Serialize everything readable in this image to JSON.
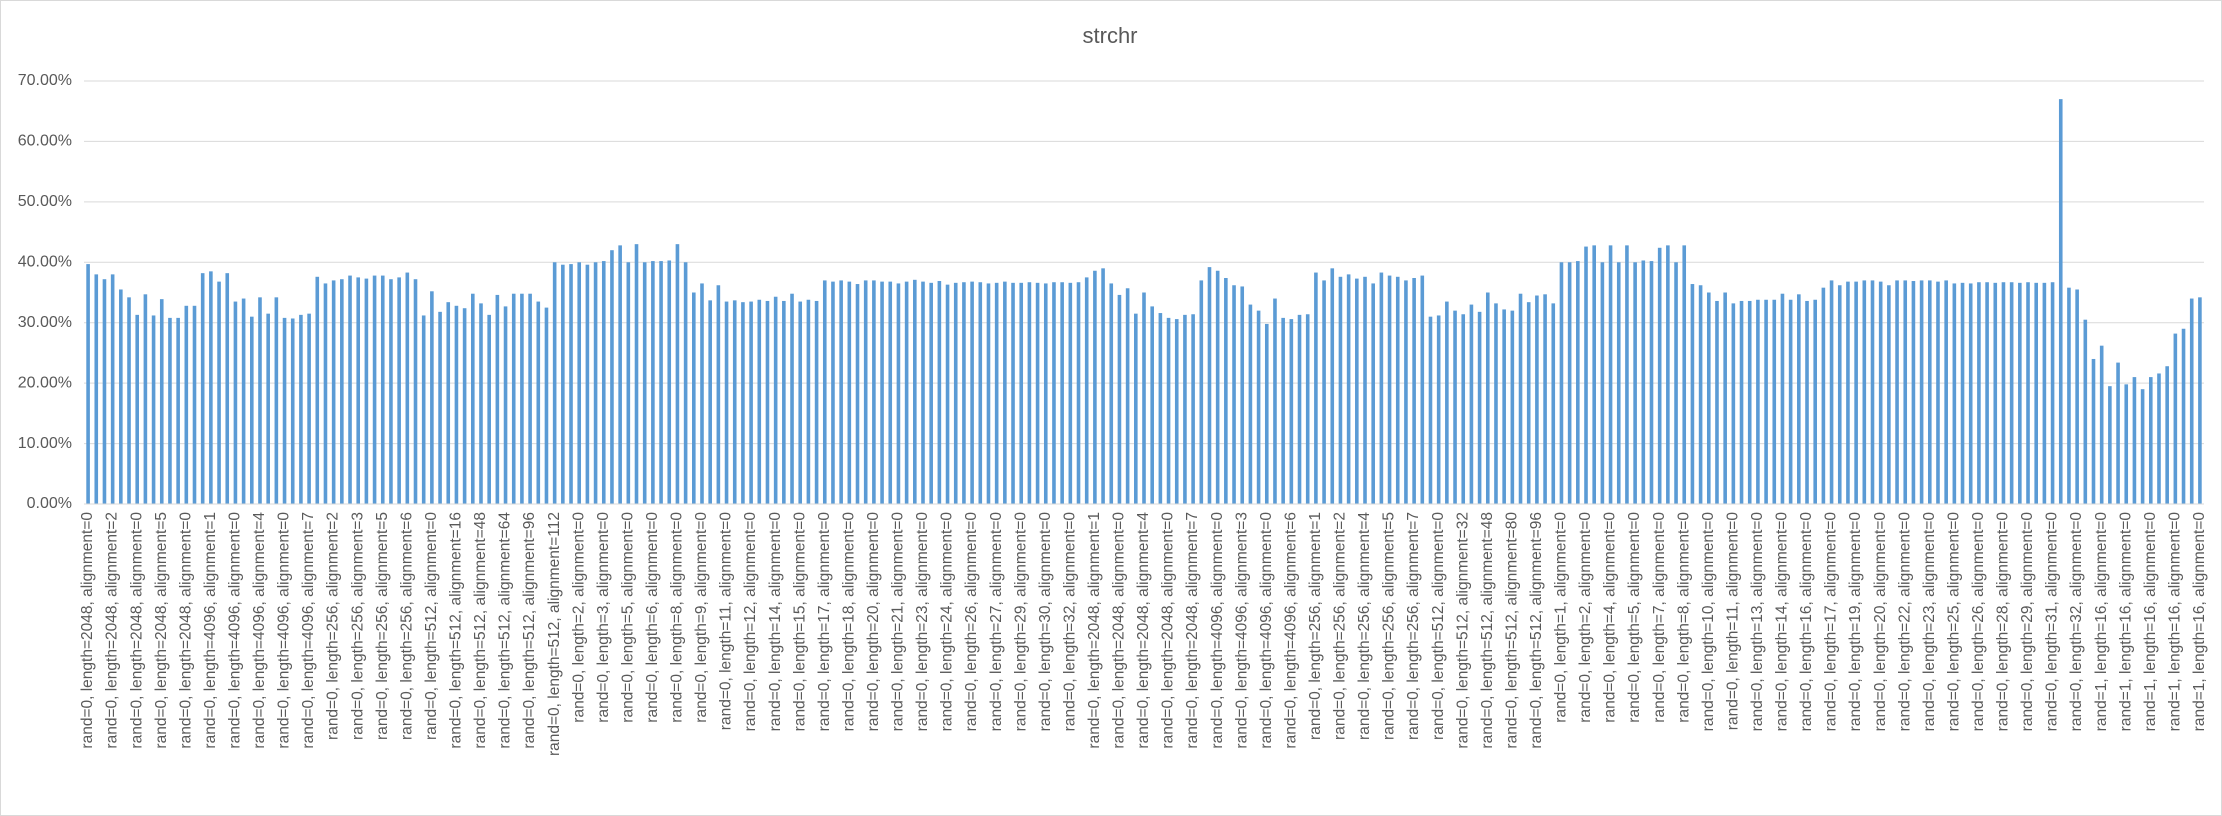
{
  "chart_data": {
    "type": "bar",
    "title": "strchr",
    "color": "#5b9bd5",
    "grid": true,
    "ylim": [
      0,
      70
    ],
    "yticks": [
      {
        "value": 0,
        "label": "0.00%"
      },
      {
        "value": 10,
        "label": "10.00%"
      },
      {
        "value": 20,
        "label": "20.00%"
      },
      {
        "value": 30,
        "label": "30.00%"
      },
      {
        "value": 40,
        "label": "40.00%"
      },
      {
        "value": 50,
        "label": "50.00%"
      },
      {
        "value": 60,
        "label": "60.00%"
      },
      {
        "value": 70,
        "label": "70.00%"
      }
    ],
    "categories": [
      "rand=0, length=2048, alignment=0",
      null,
      null,
      "rand=0, length=2048, alignment=2",
      null,
      null,
      "rand=0, length=2048, alignment=0",
      null,
      null,
      "rand=0, length=2048, alignment=5",
      null,
      null,
      "rand=0, length=2048, alignment=0",
      null,
      null,
      "rand=0, length=4096, alignment=1",
      null,
      null,
      "rand=0, length=4096, alignment=0",
      null,
      null,
      "rand=0, length=4096, alignment=4",
      null,
      null,
      "rand=0, length=4096, alignment=0",
      null,
      null,
      "rand=0, length=4096, alignment=7",
      null,
      null,
      "rand=0, length=256, alignment=2",
      null,
      null,
      "rand=0, length=256, alignment=3",
      null,
      null,
      "rand=0, length=256, alignment=5",
      null,
      null,
      "rand=0, length=256, alignment=6",
      null,
      null,
      "rand=0, length=512, alignment=0",
      null,
      null,
      "rand=0, length=512, alignment=16",
      null,
      null,
      "rand=0, length=512, alignment=48",
      null,
      null,
      "rand=0, length=512, alignment=64",
      null,
      null,
      "rand=0, length=512, alignment=96",
      null,
      null,
      "rand=0, length=512, alignment=112",
      null,
      null,
      "rand=0, length=2, alignment=0",
      null,
      null,
      "rand=0, length=3, alignment=0",
      null,
      null,
      "rand=0, length=5, alignment=0",
      null,
      null,
      "rand=0, length=6, alignment=0",
      null,
      null,
      "rand=0, length=8, alignment=0",
      null,
      null,
      "rand=0, length=9, alignment=0",
      null,
      null,
      "rand=0, length=11, alignment=0",
      null,
      null,
      "rand=0, length=12, alignment=0",
      null,
      null,
      "rand=0, length=14, alignment=0",
      null,
      null,
      "rand=0, length=15, alignment=0",
      null,
      null,
      "rand=0, length=17, alignment=0",
      null,
      null,
      "rand=0, length=18, alignment=0",
      null,
      null,
      "rand=0, length=20, alignment=0",
      null,
      null,
      "rand=0, length=21, alignment=0",
      null,
      null,
      "rand=0, length=23, alignment=0",
      null,
      null,
      "rand=0, length=24, alignment=0",
      null,
      null,
      "rand=0, length=26, alignment=0",
      null,
      null,
      "rand=0, length=27, alignment=0",
      null,
      null,
      "rand=0, length=29, alignment=0",
      null,
      null,
      "rand=0, length=30, alignment=0",
      null,
      null,
      "rand=0, length=32, alignment=0",
      null,
      null,
      "rand=0, length=2048, alignment=1",
      null,
      null,
      "rand=0, length=2048, alignment=0",
      null,
      null,
      "rand=0, length=2048, alignment=4",
      null,
      null,
      "rand=0, length=2048, alignment=0",
      null,
      null,
      "rand=0, length=2048, alignment=7",
      null,
      null,
      "rand=0, length=4096, alignment=0",
      null,
      null,
      "rand=0, length=4096, alignment=3",
      null,
      null,
      "rand=0, length=4096, alignment=0",
      null,
      null,
      "rand=0, length=4096, alignment=6",
      null,
      null,
      "rand=0, length=256, alignment=1",
      null,
      null,
      "rand=0, length=256, alignment=2",
      null,
      null,
      "rand=0, length=256, alignment=4",
      null,
      null,
      "rand=0, length=256, alignment=5",
      null,
      null,
      "rand=0, length=256, alignment=7",
      null,
      null,
      "rand=0, length=512, alignment=0",
      null,
      null,
      "rand=0, length=512, alignment=32",
      null,
      null,
      "rand=0, length=512, alignment=48",
      null,
      null,
      "rand=0, length=512, alignment=80",
      null,
      null,
      "rand=0, length=512, alignment=96",
      null,
      null,
      "rand=0, length=1, alignment=0",
      null,
      null,
      "rand=0, length=2, alignment=0",
      null,
      null,
      "rand=0, length=4, alignment=0",
      null,
      null,
      "rand=0, length=5, alignment=0",
      null,
      null,
      "rand=0, length=7, alignment=0",
      null,
      null,
      "rand=0, length=8, alignment=0",
      null,
      null,
      "rand=0, length=10, alignment=0",
      null,
      null,
      "rand=0, length=11, alignment=0",
      null,
      null,
      "rand=0, length=13, alignment=0",
      null,
      null,
      "rand=0, length=14, alignment=0",
      null,
      null,
      "rand=0, length=16, alignment=0",
      null,
      null,
      "rand=0, length=17, alignment=0",
      null,
      null,
      "rand=0, length=19, alignment=0",
      null,
      null,
      "rand=0, length=20, alignment=0",
      null,
      null,
      "rand=0, length=22, alignment=0",
      null,
      null,
      "rand=0, length=23, alignment=0",
      null,
      null,
      "rand=0, length=25, alignment=0",
      null,
      null,
      "rand=0, length=26, alignment=0",
      null,
      null,
      "rand=0, length=28, alignment=0",
      null,
      null,
      "rand=0, length=29, alignment=0",
      null,
      null,
      "rand=0, length=31, alignment=0",
      null,
      null,
      "rand=0, length=32, alignment=0",
      null,
      null,
      "rand=1, length=16, alignment=0",
      null,
      null,
      "rand=1, length=16, alignment=0",
      null,
      null,
      "rand=1, length=16, alignment=0",
      null,
      null,
      "rand=1, length=16, alignment=0",
      null,
      null,
      "rand=1, length=16, alignment=0"
    ],
    "values": [
      39.7,
      38,
      37.2,
      38,
      35.5,
      34.2,
      31.3,
      34.7,
      31.2,
      33.9,
      30.8,
      30.8,
      32.8,
      32.8,
      38.2,
      38.5,
      36.8,
      38.2,
      33.5,
      34,
      31,
      34.2,
      31.5,
      34.2,
      30.8,
      30.7,
      31.3,
      31.5,
      37.6,
      36.5,
      37,
      37.2,
      37.8,
      37.5,
      37.3,
      37.8,
      37.8,
      37.2,
      37.5,
      38.3,
      37.2,
      31.2,
      35.2,
      31.8,
      33.4,
      32.8,
      32.4,
      34.8,
      33.2,
      31.3,
      34.6,
      32.7,
      34.8,
      34.8,
      34.8,
      33.5,
      32.5,
      40,
      39.6,
      39.7,
      40,
      39.6,
      40,
      40.2,
      42,
      42.8,
      40,
      43,
      40,
      40.2,
      40.2,
      40.3,
      43,
      40,
      35,
      36.5,
      33.7,
      36.2,
      33.5,
      33.7,
      33.4,
      33.5,
      33.8,
      33.6,
      34.3,
      33.6,
      34.8,
      33.5,
      33.8,
      33.6,
      37,
      36.8,
      37,
      36.8,
      36.4,
      37,
      37,
      36.8,
      36.8,
      36.5,
      36.8,
      37.1,
      36.8,
      36.6,
      36.9,
      36.3,
      36.6,
      36.7,
      36.8,
      36.7,
      36.5,
      36.6,
      36.8,
      36.6,
      36.6,
      36.7,
      36.6,
      36.5,
      36.7,
      36.7,
      36.6,
      36.7,
      37.5,
      38.6,
      39,
      36.5,
      34.6,
      35.7,
      31.5,
      35,
      32.7,
      31.6,
      30.8,
      30.6,
      31.3,
      31.4,
      37,
      39.2,
      38.6,
      37.4,
      36.2,
      36,
      33,
      32,
      29.8,
      34,
      30.8,
      30.6,
      31.3,
      31.4,
      38.3,
      37,
      39,
      37.6,
      38,
      37.3,
      37.6,
      36.5,
      38.3,
      37.8,
      37.6,
      37,
      37.4,
      37.8,
      31,
      31.2,
      33.5,
      32,
      31.4,
      33,
      31.8,
      35,
      33.2,
      32.2,
      32,
      34.8,
      33.4,
      34.5,
      34.7,
      33.2,
      40,
      40,
      40.2,
      42.6,
      42.8,
      40,
      42.8,
      40,
      42.8,
      40,
      40.3,
      40.2,
      42.4,
      42.8,
      40,
      42.8,
      36.4,
      36.2,
      35,
      33.6,
      35,
      33.2,
      33.6,
      33.6,
      33.8,
      33.8,
      33.8,
      34.8,
      33.8,
      34.7,
      33.6,
      33.8,
      35.8,
      37,
      36.2,
      36.8,
      36.8,
      37,
      37,
      36.8,
      36.2,
      37,
      37,
      36.9,
      37,
      37,
      36.8,
      37,
      36.5,
      36.6,
      36.5,
      36.7,
      36.7,
      36.6,
      36.7,
      36.7,
      36.6,
      36.7,
      36.6,
      36.6,
      36.7,
      67,
      35.8,
      35.5,
      30.5,
      24,
      26.2,
      19.5,
      23.4,
      19.8,
      21,
      19,
      21,
      21.6,
      22.8,
      28.2,
      29,
      34,
      34.2
    ]
  }
}
